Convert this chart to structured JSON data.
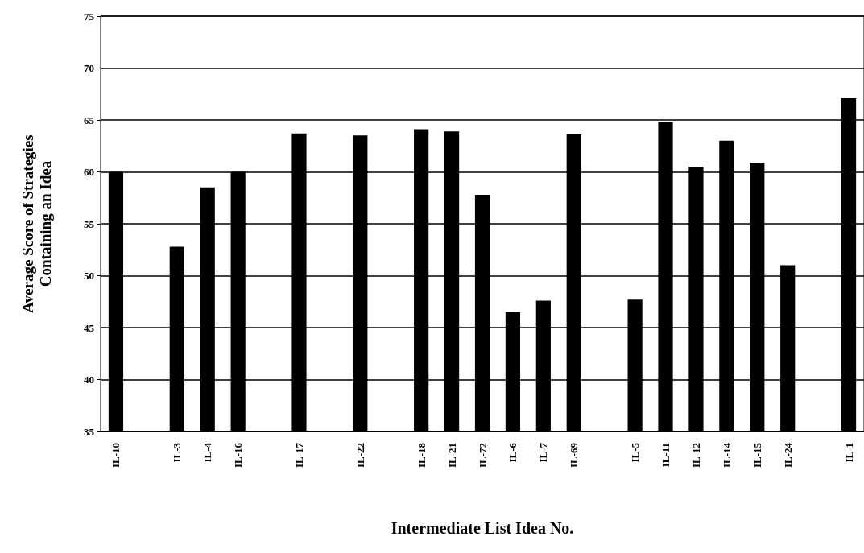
{
  "chart_data": {
    "type": "bar",
    "xlabel": "Intermediate List Idea No.",
    "ylabel": "Average Score of Strategies\nContaining an Idea",
    "categories": [
      "IL-10",
      null,
      "IL-3",
      "IL-4",
      "IL-16",
      null,
      "IL-17",
      null,
      "IL-22",
      null,
      "IL-18",
      "IL-21",
      "IL-72",
      "IL-6",
      "IL-7",
      "IL-69",
      null,
      "IL-5",
      "IL-11",
      "IL-12",
      "IL-14",
      "IL-15",
      "IL-24",
      null,
      "IL-1"
    ],
    "values": [
      60,
      null,
      52.8,
      58.5,
      60,
      null,
      63.7,
      null,
      63.5,
      null,
      64.1,
      63.9,
      57.8,
      46.5,
      47.6,
      63.6,
      null,
      47.7,
      64.8,
      60.5,
      63,
      60.9,
      51,
      null,
      67.1
    ],
    "color": "#000000",
    "ylim": [
      35,
      75
    ],
    "yticks": [
      35,
      40,
      45,
      50,
      55,
      60,
      65,
      70,
      75
    ],
    "grid": "y"
  }
}
